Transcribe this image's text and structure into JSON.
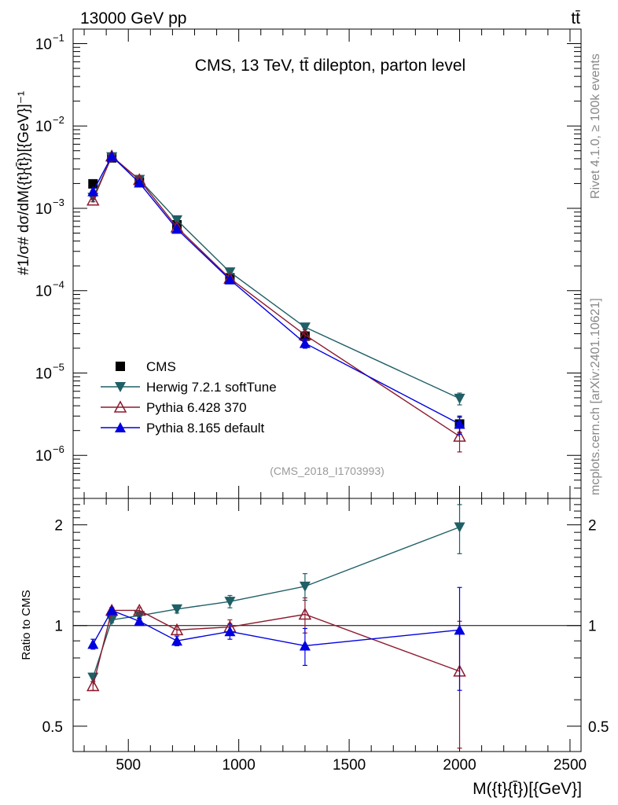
{
  "header": {
    "left": "13000 GeV pp",
    "right": "tt̄"
  },
  "side_labels": {
    "rivet": "Rivet 4.1.0, ≥ 100k events",
    "mcplots": "mcplots.cern.ch [arXiv:2401.10621]"
  },
  "chart_data": {
    "type": "line",
    "title": "CMS, 13 TeV, tt̄ dilepton, parton level",
    "watermark": "(CMS_2018_I1703993)",
    "xlabel": "M({t}{t̄})[{GeV}]",
    "ylabel": "#1/σ# dσ/dM({t}{t̄})[{GeV}]⁻¹",
    "xlim": [
      250,
      2550
    ],
    "xticks": [
      500,
      1000,
      1500,
      2000,
      2500
    ],
    "main": {
      "yscale": "log",
      "ylim": [
        3e-07,
        0.15
      ],
      "yticks": [
        {
          "value": 1e-06,
          "label": "10",
          "exp": "−6"
        },
        {
          "value": 1e-05,
          "label": "10",
          "exp": "−5"
        },
        {
          "value": 0.0001,
          "label": "10",
          "exp": "−4"
        },
        {
          "value": 0.001,
          "label": "10",
          "exp": "−3"
        },
        {
          "value": 0.01,
          "label": "10",
          "exp": "−2"
        },
        {
          "value": 0.1,
          "label": "10",
          "exp": "−1"
        }
      ]
    },
    "ratio": {
      "ylabel": "Ratio to CMS",
      "yscale": "log",
      "ylim": [
        0.42,
        2.4
      ],
      "yticks": [
        {
          "value": 0.5,
          "label": "0.5"
        },
        {
          "value": 1,
          "label": "1"
        },
        {
          "value": 2,
          "label": "2"
        }
      ]
    },
    "x": [
      340,
      425,
      550,
      720,
      960,
      1300,
      2000
    ],
    "legend_position": "lower-left",
    "series": [
      {
        "name": "CMS",
        "color": "#000000",
        "marker": "square",
        "values": [
          0.00198,
          0.0041,
          0.00208,
          0.00063,
          0.000143,
          2.8e-05,
          2.4e-06
        ],
        "errors": [
          0.00012,
          0.0002,
          0.0001,
          4e-05,
          1e-05,
          3e-06,
          5e-07
        ],
        "ratio": [
          1.0,
          1.0,
          1.0,
          1.0,
          1.0,
          1.0,
          1.0
        ],
        "ratio_errors": [
          0.05,
          0.04,
          0.04,
          0.04,
          0.05,
          0.08,
          0.2
        ]
      },
      {
        "name": "Herwig 7.2.1 softTune",
        "color": "#1f5f66",
        "marker": "triangle-down",
        "values": [
          0.00135,
          0.0042,
          0.00223,
          0.00072,
          0.000168,
          3.6e-05,
          4.9e-06
        ],
        "errors": [
          6e-05,
          0.0001,
          6e-05,
          2e-05,
          8e-06,
          2.5e-06,
          8e-07
        ],
        "ratio": [
          0.7,
          1.04,
          1.07,
          1.12,
          1.18,
          1.31,
          1.97
        ],
        "ratio_errors": [
          0.02,
          0.02,
          0.02,
          0.03,
          0.05,
          0.12,
          0.33
        ]
      },
      {
        "name": "Pythia 6.428 370",
        "color": "#8c1a2e",
        "marker": "triangle-up-open",
        "values": [
          0.00125,
          0.0043,
          0.00222,
          0.00059,
          0.000141,
          2.9e-05,
          1.7e-06
        ],
        "errors": [
          5e-05,
          0.0001,
          6e-05,
          2e-05,
          7e-06,
          3e-06,
          6e-07
        ],
        "ratio": [
          0.66,
          1.11,
          1.11,
          0.97,
          0.99,
          1.08,
          0.73
        ],
        "ratio_errors": [
          0.02,
          0.02,
          0.02,
          0.03,
          0.05,
          0.13,
          0.3
        ]
      },
      {
        "name": "Pythia 8.165 default",
        "color": "#0000e0",
        "marker": "triangle-up",
        "values": [
          0.0016,
          0.0043,
          0.00204,
          0.00056,
          0.000136,
          2.3e-05,
          2.4e-06
        ],
        "errors": [
          6e-05,
          0.0001,
          6e-05,
          2e-05,
          7e-06,
          3e-06,
          6e-07
        ],
        "ratio": [
          0.88,
          1.11,
          1.03,
          0.9,
          0.96,
          0.87,
          0.97
        ],
        "ratio_errors": [
          0.03,
          0.02,
          0.02,
          0.03,
          0.05,
          0.11,
          0.33
        ]
      }
    ]
  }
}
